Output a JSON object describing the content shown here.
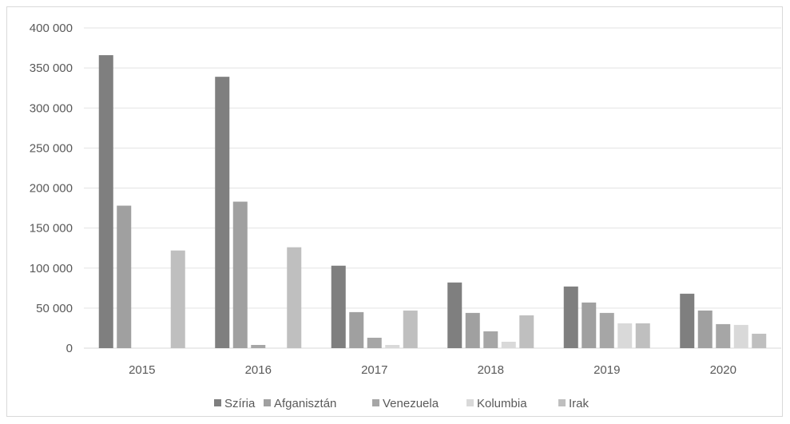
{
  "chart_data": {
    "type": "bar",
    "categories": [
      "2015",
      "2016",
      "2017",
      "2018",
      "2019",
      "2020"
    ],
    "series": [
      {
        "name": "Szíria",
        "color": "#7f7f7f",
        "values": [
          366000,
          339000,
          103000,
          82000,
          77000,
          68000
        ]
      },
      {
        "name": "Afganisztán",
        "color": "#a0a0a0",
        "values": [
          178000,
          183000,
          45000,
          44000,
          57000,
          47000
        ]
      },
      {
        "name": "Venezuela",
        "color": "#a6a6a6",
        "values": [
          0,
          4000,
          13000,
          21000,
          44000,
          30000
        ]
      },
      {
        "name": "Kolumbia",
        "color": "#d9d9d9",
        "values": [
          0,
          0,
          4000,
          8000,
          31000,
          29000
        ]
      },
      {
        "name": "Irak",
        "color": "#bfbfbf",
        "values": [
          122000,
          126000,
          47000,
          41000,
          31000,
          18000
        ]
      }
    ],
    "yticks": [
      "0",
      "50 000",
      "100 000",
      "150 000",
      "200 000",
      "250 000",
      "300 000",
      "350 000",
      "400 000"
    ],
    "ylim": [
      0,
      400000
    ],
    "grid": true,
    "legend_position": "bottom"
  }
}
